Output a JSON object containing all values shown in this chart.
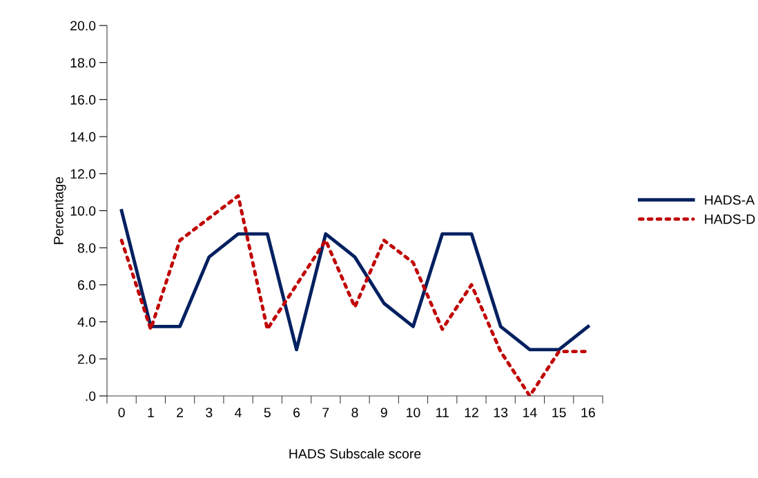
{
  "chart_data": {
    "type": "line",
    "xlabel": "HADS Subscale score",
    "ylabel": "Percentage",
    "categories": [
      "0",
      "1",
      "2",
      "3",
      "4",
      "5",
      "6",
      "7",
      "8",
      "9",
      "10",
      "11",
      "12",
      "13",
      "14",
      "15",
      "16"
    ],
    "series": [
      {
        "name": "HADS-A",
        "color": "#002060",
        "line_style": "solid",
        "values": [
          10.0,
          3.75,
          3.75,
          7.5,
          8.75,
          8.75,
          2.5,
          8.75,
          7.5,
          5.0,
          3.75,
          8.75,
          8.75,
          3.75,
          2.5,
          2.5,
          3.75
        ]
      },
      {
        "name": "HADS-D",
        "color": "#c00000",
        "line_style": "dotted",
        "values": [
          8.4,
          3.6,
          8.4,
          9.6,
          10.8,
          3.6,
          6.0,
          8.4,
          4.8,
          8.4,
          7.2,
          3.6,
          6.0,
          2.4,
          0.0,
          2.4,
          2.4
        ]
      }
    ],
    "ylim": [
      0,
      20
    ],
    "yticks": [
      {
        "value": 0,
        "label": ".0"
      },
      {
        "value": 2,
        "label": "2.0"
      },
      {
        "value": 4,
        "label": "4.0"
      },
      {
        "value": 6,
        "label": "6.0"
      },
      {
        "value": 8,
        "label": "8.0"
      },
      {
        "value": 10,
        "label": "10.0"
      },
      {
        "value": 12,
        "label": "12.0"
      },
      {
        "value": 14,
        "label": "14.0"
      },
      {
        "value": 16,
        "label": "16.0"
      },
      {
        "value": 18,
        "label": "18.0"
      },
      {
        "value": 20,
        "label": "20.0"
      }
    ],
    "grid": false,
    "legend": "right",
    "marker": "none"
  }
}
